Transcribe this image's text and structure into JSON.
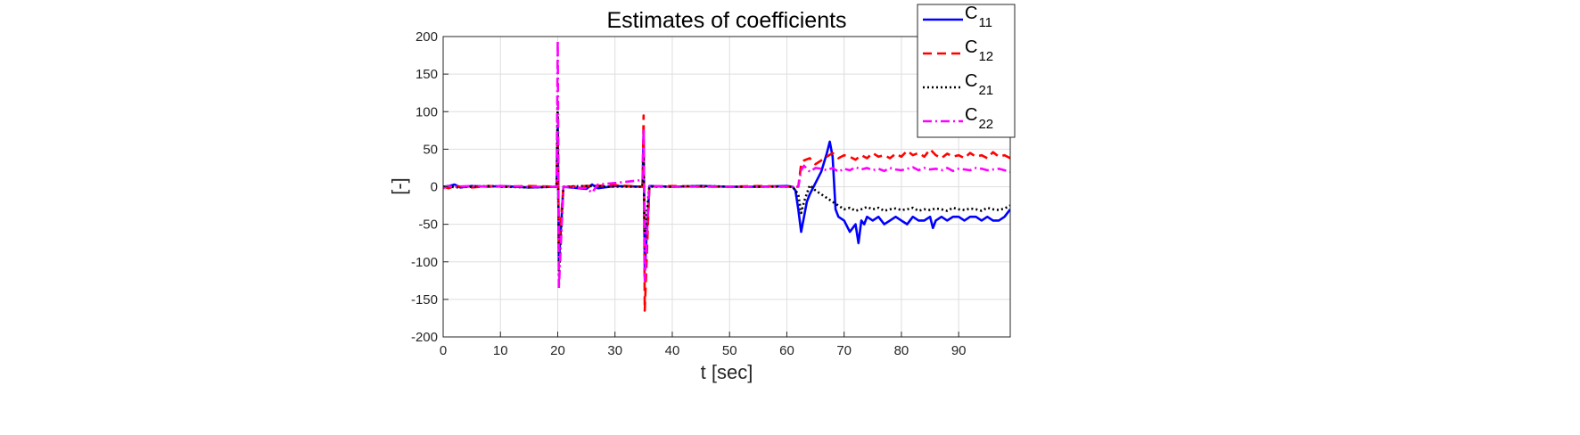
{
  "chart_data": {
    "type": "line",
    "title": "Estimates of coefficients",
    "xlabel": "t [sec]",
    "ylabel": "[-]",
    "xlim": [
      0,
      99
    ],
    "ylim": [
      -200,
      200
    ],
    "xticks": [
      0,
      10,
      20,
      30,
      40,
      50,
      60,
      70,
      80,
      90
    ],
    "yticks": [
      -200,
      -150,
      -100,
      -50,
      0,
      50,
      100,
      150,
      200
    ],
    "grid": true,
    "legend_position": "top-right",
    "series": [
      {
        "name_main": "C",
        "name_sub": "11",
        "color": "#0000ff",
        "style": "solid",
        "x": [
          0,
          1,
          2,
          3,
          5,
          8,
          10,
          15,
          19.8,
          20,
          20.2,
          21,
          25,
          26,
          27,
          30,
          34.8,
          35,
          35.2,
          36,
          40,
          45,
          50,
          55,
          60,
          61,
          61.5,
          62,
          62.5,
          63,
          63.5,
          64,
          65,
          66,
          67,
          67.5,
          68,
          68.5,
          69,
          70,
          71,
          72,
          72.5,
          73,
          73.5,
          74,
          75,
          76,
          77,
          78,
          79,
          80,
          81,
          82,
          83,
          84,
          85,
          85.5,
          86,
          87,
          88,
          89,
          90,
          91,
          92,
          93,
          94,
          95,
          96,
          97,
          98,
          99
        ],
        "y": [
          0,
          1,
          3,
          -1,
          1,
          0,
          1,
          -1,
          0,
          80,
          -100,
          0,
          -3,
          3,
          -2,
          1,
          0,
          70,
          -110,
          1,
          0,
          1,
          0,
          0,
          1,
          0,
          -5,
          -30,
          -60,
          -40,
          -20,
          -10,
          5,
          20,
          45,
          60,
          40,
          -30,
          -40,
          -45,
          -60,
          -50,
          -75,
          -45,
          -50,
          -40,
          -45,
          -40,
          -50,
          -45,
          -40,
          -45,
          -50,
          -40,
          -45,
          -45,
          -40,
          -55,
          -45,
          -40,
          -45,
          -40,
          -40,
          -45,
          -40,
          -40,
          -45,
          -40,
          -45,
          -45,
          -40,
          -30
        ]
      },
      {
        "name_main": "C",
        "name_sub": "12",
        "color": "#ff0000",
        "style": "dashed",
        "x": [
          0,
          1,
          2,
          5,
          8,
          10,
          15,
          19.8,
          20,
          20.2,
          21,
          25,
          30,
          34.8,
          35,
          35.2,
          36,
          40,
          45,
          50,
          55,
          60,
          61,
          62,
          62.5,
          63,
          64,
          65,
          66,
          67,
          68,
          69,
          70,
          71,
          72,
          73,
          74,
          75,
          76,
          77,
          78,
          79,
          80,
          81,
          82,
          83,
          84,
          85,
          86,
          87,
          88,
          89,
          90,
          91,
          92,
          93,
          94,
          95,
          96,
          97,
          98,
          99
        ],
        "y": [
          0,
          -2,
          1,
          -1,
          1,
          0,
          1,
          0,
          60,
          -80,
          0,
          1,
          2,
          0,
          95,
          -165,
          0,
          1,
          0,
          0,
          1,
          0,
          0,
          0,
          30,
          35,
          38,
          30,
          35,
          40,
          45,
          38,
          42,
          40,
          36,
          42,
          38,
          45,
          40,
          42,
          38,
          44,
          40,
          48,
          42,
          45,
          40,
          50,
          42,
          38,
          44,
          40,
          42,
          38,
          45,
          40,
          42,
          38,
          46,
          40,
          42,
          38
        ]
      },
      {
        "name_main": "C",
        "name_sub": "21",
        "color": "#000000",
        "style": "dotted",
        "x": [
          0,
          1,
          2,
          5,
          8,
          10,
          15,
          19.8,
          20,
          20.2,
          21,
          25,
          30,
          34.8,
          35,
          35.2,
          36,
          40,
          45,
          50,
          55,
          60,
          61,
          62,
          62.5,
          63,
          64,
          65,
          66,
          67,
          68,
          69,
          70,
          71,
          72,
          73,
          74,
          75,
          76,
          77,
          78,
          79,
          80,
          81,
          82,
          83,
          84,
          85,
          86,
          87,
          88,
          89,
          90,
          91,
          92,
          93,
          94,
          95,
          96,
          97,
          98,
          99
        ],
        "y": [
          0,
          1,
          -1,
          0,
          1,
          0,
          -1,
          0,
          110,
          -120,
          0,
          1,
          0,
          0,
          40,
          -60,
          0,
          0,
          1,
          0,
          0,
          0,
          0,
          -10,
          -35,
          -20,
          2,
          -5,
          -10,
          -15,
          -20,
          -25,
          -30,
          -28,
          -32,
          -30,
          -27,
          -30,
          -28,
          -32,
          -30,
          -29,
          -31,
          -30,
          -28,
          -32,
          -30,
          -31,
          -29,
          -30,
          -32,
          -28,
          -30,
          -31,
          -29,
          -30,
          -32,
          -28,
          -30,
          -31,
          -29,
          -25
        ]
      },
      {
        "name_main": "C",
        "name_sub": "22",
        "color": "#ff00ff",
        "style": "dashdot",
        "x": [
          0,
          0.5,
          1,
          2,
          5,
          8,
          10,
          15,
          19.8,
          20,
          20.2,
          21,
          25,
          26,
          27,
          30,
          34.8,
          35,
          35.2,
          36,
          40,
          45,
          50,
          55,
          60,
          61,
          62,
          62.5,
          63,
          64,
          65,
          66,
          67,
          68,
          69,
          70,
          71,
          72,
          73,
          74,
          75,
          76,
          77,
          78,
          79,
          80,
          81,
          82,
          83,
          84,
          85,
          86,
          87,
          88,
          89,
          90,
          91,
          92,
          93,
          94,
          95,
          96,
          97,
          98,
          99
        ],
        "y": [
          -2,
          0,
          1,
          0,
          1,
          0,
          1,
          0,
          0,
          195,
          -135,
          0,
          -2,
          -8,
          3,
          5,
          9,
          78,
          -125,
          1,
          0,
          0,
          0,
          0,
          0,
          0,
          0,
          22,
          28,
          20,
          25,
          24,
          22,
          25,
          20,
          24,
          22,
          26,
          23,
          25,
          22,
          24,
          21,
          25,
          23,
          22,
          24,
          26,
          22,
          25,
          23,
          24,
          22,
          25,
          21,
          24,
          23,
          22,
          25,
          24,
          22,
          23,
          24,
          22,
          20
        ]
      }
    ]
  }
}
